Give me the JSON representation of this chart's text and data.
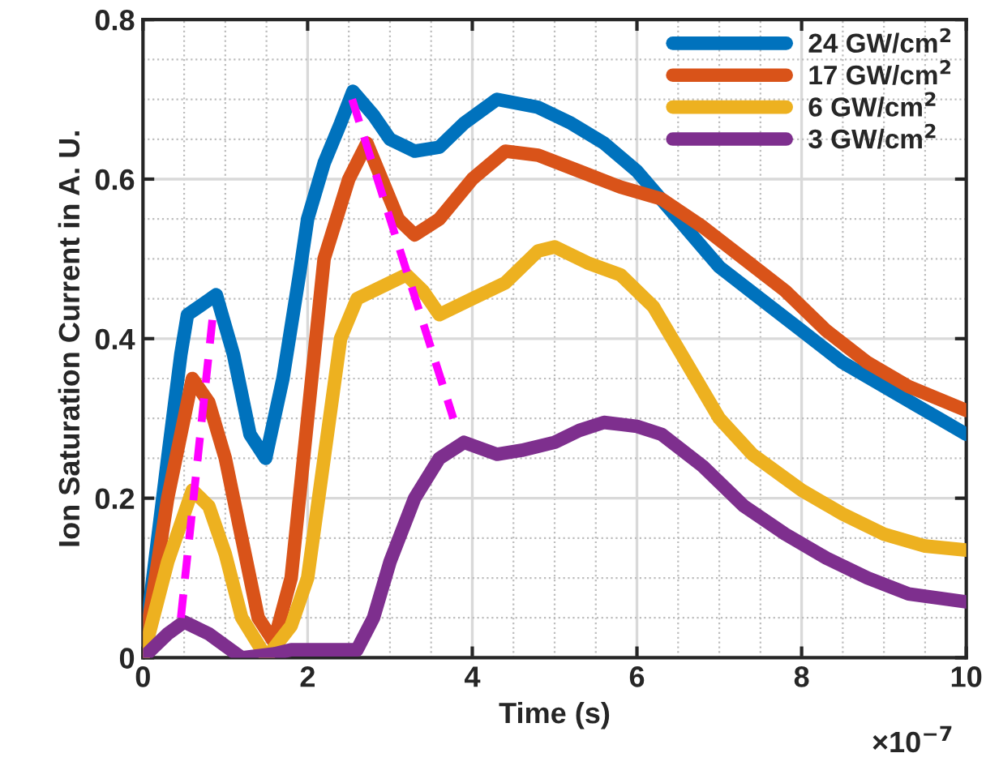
{
  "chart_data": {
    "type": "line",
    "xlabel": "Time (s)",
    "ylabel": "Ion Saturation Current in A. U.",
    "xlim": [
      0,
      10
    ],
    "xticks": [
      0,
      2,
      4,
      6,
      8,
      10
    ],
    "ylim": [
      0,
      0.8
    ],
    "yticks": [
      0,
      0.2,
      0.4,
      0.6,
      0.8
    ],
    "grid": true,
    "legend": "top right",
    "line_style": "solid",
    "marker": "none",
    "annotations": [
      "×10$^{−7}$"
    ],
    "series": [
      {
        "name": "24 GW/cm$^{2}$",
        "color": "#0072bd",
        "x": [
          0,
          0.3,
          0.46,
          0.54,
          0.89,
          1.1,
          1.3,
          1.49,
          1.7,
          1.9,
          2.0,
          2.2,
          2.4,
          2.55,
          2.8,
          3.0,
          3.3,
          3.6,
          3.9,
          4.3,
          4.8,
          5.2,
          5.6,
          6.0,
          6.5,
          7.0,
          7.5,
          8.0,
          8.5,
          9.0,
          9.5,
          10
        ],
        "values": [
          0,
          0.25,
          0.38,
          0.43,
          0.455,
          0.38,
          0.28,
          0.25,
          0.35,
          0.48,
          0.55,
          0.62,
          0.67,
          0.71,
          0.68,
          0.65,
          0.635,
          0.64,
          0.67,
          0.7,
          0.69,
          0.67,
          0.645,
          0.61,
          0.55,
          0.49,
          0.45,
          0.41,
          0.37,
          0.34,
          0.31,
          0.28
        ]
      },
      {
        "name": "17 GW/cm$^{2}$",
        "color": "#d95319",
        "x": [
          0,
          0.3,
          0.6,
          0.8,
          1.0,
          1.2,
          1.4,
          1.59,
          1.8,
          2.0,
          2.2,
          2.5,
          2.72,
          2.9,
          3.1,
          3.3,
          3.6,
          4.0,
          4.4,
          4.8,
          5.3,
          5.8,
          6.3,
          6.8,
          7.3,
          7.8,
          8.3,
          8.8,
          9.3,
          10
        ],
        "values": [
          0,
          0.2,
          0.35,
          0.32,
          0.25,
          0.15,
          0.05,
          0.02,
          0.1,
          0.3,
          0.5,
          0.6,
          0.645,
          0.6,
          0.55,
          0.53,
          0.55,
          0.6,
          0.635,
          0.63,
          0.61,
          0.59,
          0.575,
          0.54,
          0.5,
          0.46,
          0.41,
          0.37,
          0.34,
          0.31
        ]
      },
      {
        "name": "6 GW/cm$^{2}$",
        "color": "#edb120",
        "x": [
          0,
          0.3,
          0.6,
          0.8,
          1.0,
          1.2,
          1.5,
          1.8,
          2.0,
          2.2,
          2.4,
          2.6,
          3.2,
          3.4,
          3.6,
          4.0,
          4.4,
          4.8,
          5.0,
          5.4,
          5.8,
          6.2,
          6.6,
          7.0,
          7.4,
          8.0,
          8.5,
          9.0,
          9.5,
          10
        ],
        "values": [
          0,
          0.12,
          0.21,
          0.19,
          0.13,
          0.05,
          0,
          0.04,
          0.1,
          0.25,
          0.4,
          0.45,
          0.48,
          0.46,
          0.43,
          0.45,
          0.47,
          0.51,
          0.515,
          0.495,
          0.48,
          0.44,
          0.37,
          0.3,
          0.255,
          0.21,
          0.18,
          0.155,
          0.14,
          0.135
        ]
      },
      {
        "name": "3 GW/cm$^{2}$",
        "color": "#7e2f8e",
        "x": [
          0,
          0.3,
          0.5,
          0.8,
          1.0,
          1.2,
          1.6,
          1.8,
          2.2,
          2.6,
          2.8,
          3.0,
          3.3,
          3.6,
          3.9,
          4.3,
          4.6,
          5.0,
          5.3,
          5.6,
          6.0,
          6.3,
          6.8,
          7.3,
          7.8,
          8.3,
          8.8,
          9.3,
          10
        ],
        "values": [
          0,
          0.03,
          0.045,
          0.03,
          0.015,
          0,
          0.005,
          0.01,
          0.01,
          0.01,
          0.05,
          0.12,
          0.2,
          0.25,
          0.27,
          0.255,
          0.26,
          0.27,
          0.285,
          0.295,
          0.29,
          0.28,
          0.24,
          0.19,
          0.155,
          0.125,
          0.1,
          0.08,
          0.07
        ]
      },
      {
        "color": "#ff00ff",
        "line_style": "dashed",
        "x": [
          0.46,
          0.86,
          1.7,
          2.54,
          3.77
        ],
        "values": [
          0.05,
          0.44,
          null,
          0.7,
          0.3
        ]
      }
    ]
  }
}
